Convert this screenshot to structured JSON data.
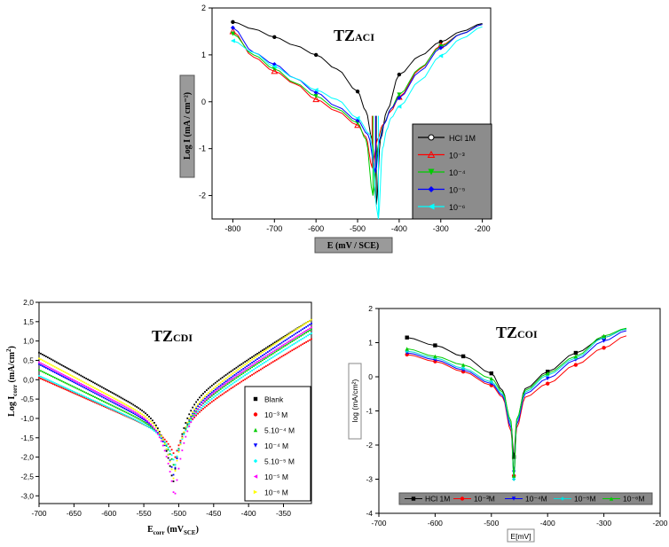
{
  "chart_data": [
    {
      "type": "line",
      "title": "TZ",
      "title_sub": "ACI",
      "xlabel": "E (mV / SCE)",
      "ylabel": "Log I (mA / cm⁻²)",
      "xlim": [
        -850,
        -180
      ],
      "ylim": [
        -2.5,
        2
      ],
      "xticks": [
        -800,
        -700,
        -600,
        -500,
        -400,
        -300,
        -200
      ],
      "yticks": [
        -2,
        -1,
        0,
        1,
        2
      ],
      "legend": [
        "HCl 1M",
        "10⁻³",
        "10⁻⁴",
        "10⁻⁵",
        "10⁻⁶"
      ],
      "series": [
        {
          "name": "HCl 1M",
          "color": "#000000",
          "ecorr": -455,
          "dip": -2.2,
          "x": [
            -800,
            -750,
            -700,
            -650,
            -600,
            -550,
            -500,
            -480,
            -465,
            -455,
            -445,
            -430,
            -400,
            -350,
            -300,
            -250,
            -200
          ],
          "y": [
            1.7,
            1.55,
            1.38,
            1.2,
            1.0,
            0.7,
            0.22,
            -0.2,
            -0.8,
            -2.2,
            -0.8,
            -0.2,
            0.58,
            0.98,
            1.28,
            1.5,
            1.67
          ]
        },
        {
          "name": "10⁻³",
          "color": "#ff0000",
          "ecorr": -465,
          "dip": -1.4,
          "x": [
            -800,
            -750,
            -700,
            -650,
            -600,
            -550,
            -500,
            -480,
            -465,
            -452,
            -440,
            -420,
            -400,
            -350,
            -300,
            -250,
            -200
          ],
          "y": [
            1.5,
            0.95,
            0.65,
            0.38,
            0.05,
            -0.2,
            -0.5,
            -0.75,
            -1.4,
            -0.8,
            -0.5,
            -0.2,
            0.1,
            0.7,
            1.2,
            1.45,
            1.65
          ]
        },
        {
          "name": "10⁻⁴",
          "color": "#00cc00",
          "ecorr": -463,
          "dip": -2.0,
          "x": [
            -800,
            -750,
            -700,
            -650,
            -600,
            -550,
            -500,
            -480,
            -463,
            -450,
            -438,
            -420,
            -400,
            -350,
            -300,
            -250,
            -200
          ],
          "y": [
            1.45,
            1.0,
            0.7,
            0.4,
            0.12,
            -0.15,
            -0.45,
            -0.8,
            -2.0,
            -0.9,
            -0.5,
            -0.15,
            0.15,
            0.72,
            1.18,
            1.45,
            1.65
          ]
        },
        {
          "name": "10⁻⁵",
          "color": "#0000ff",
          "ecorr": -457,
          "dip": -1.5,
          "x": [
            -800,
            -750,
            -700,
            -650,
            -600,
            -550,
            -500,
            -475,
            -457,
            -447,
            -435,
            -420,
            -400,
            -350,
            -300,
            -250,
            -200
          ],
          "y": [
            1.58,
            1.05,
            0.8,
            0.5,
            0.2,
            -0.1,
            -0.4,
            -0.7,
            -1.5,
            -0.8,
            -0.45,
            -0.15,
            0.08,
            0.65,
            1.15,
            1.45,
            1.65
          ]
        },
        {
          "name": "10⁻⁶",
          "color": "#00ffff",
          "ecorr": -450,
          "dip": -2.5,
          "x": [
            -800,
            -750,
            -700,
            -650,
            -600,
            -550,
            -500,
            -470,
            -450,
            -440,
            -430,
            -420,
            -400,
            -350,
            -300,
            -250,
            -200
          ],
          "y": [
            1.3,
            1.05,
            0.75,
            0.5,
            0.25,
            0.05,
            -0.35,
            -0.7,
            -2.5,
            -1.0,
            -0.6,
            -0.35,
            -0.1,
            0.45,
            0.98,
            1.35,
            1.6
          ]
        }
      ]
    },
    {
      "type": "scatter",
      "title": "TZ",
      "title_sub": "CDI",
      "xlabel": "E",
      "xlabel_sub": "corr",
      "xlabel_tail": " (mV",
      "xlabel_sub2": "SCE",
      "xlabel_end": ")",
      "ylabel": "Log I",
      "ylabel_sub": "corr",
      "ylabel_tail": " (mA/cm",
      "ylabel_sup": "2",
      "ylabel_end": ")",
      "xlim": [
        -700,
        -310
      ],
      "ylim": [
        -3.2,
        2.0
      ],
      "xticks": [
        -700,
        -650,
        -600,
        -550,
        -500,
        -450,
        -400,
        -350
      ],
      "yticks": [
        "2,0",
        "1,5",
        "1,0",
        "0,5",
        "0,0",
        "-0,5",
        "-1,0",
        "-1,5",
        "-2,0",
        "-2,5",
        "-3,0"
      ],
      "ytick_values": [
        2.0,
        1.5,
        1.0,
        0.5,
        0.0,
        -0.5,
        -1.0,
        -1.5,
        -2.0,
        -2.5,
        -3.0
      ],
      "legend": [
        {
          "marker": "■",
          "label": "Blank"
        },
        {
          "marker": "●",
          "label": "10⁻³ M"
        },
        {
          "marker": "▲",
          "label": "5.10⁻⁴ M"
        },
        {
          "marker": "▼",
          "label": "10⁻⁴ M"
        },
        {
          "marker": "◆",
          "label": "5.10⁻⁵ M"
        },
        {
          "marker": "◀",
          "label": "10⁻⁵ M"
        },
        {
          "marker": "▶",
          "label": "10⁻⁶ M"
        }
      ],
      "series": [
        {
          "name": "Blank",
          "color": "#000000",
          "a0": 0.7,
          "a1": -1.2,
          "ecorr": -508,
          "dip": -2.7,
          "b1": -1.0,
          "b0": 1.55
        },
        {
          "name": "10-3 M",
          "color": "#ff0000",
          "a0": 0.05,
          "a1": -1.5,
          "ecorr": -505,
          "dip": -2.0,
          "b1": -1.35,
          "b0": 1.05
        },
        {
          "name": "5.10-4 M",
          "color": "#00cc00",
          "a0": 0.25,
          "a1": -1.45,
          "ecorr": -506,
          "dip": -2.3,
          "b1": -1.25,
          "b0": 1.3
        },
        {
          "name": "10-4 M",
          "color": "#0000ff",
          "a0": 0.4,
          "a1": -1.4,
          "ecorr": -507,
          "dip": -2.5,
          "b1": -1.2,
          "b0": 1.45
        },
        {
          "name": "5.10-5 M",
          "color": "#00ffff",
          "a0": 0.1,
          "a1": -1.5,
          "ecorr": -505,
          "dip": -2.2,
          "b1": -1.3,
          "b0": 1.2
        },
        {
          "name": "10-5 M",
          "color": "#ff00ff",
          "a0": 0.45,
          "a1": -1.35,
          "ecorr": -506,
          "dip": -3.1,
          "b1": -1.2,
          "b0": 1.35
        },
        {
          "name": "10-6 M",
          "color": "#ffff00",
          "a0": 0.55,
          "a1": -1.3,
          "ecorr": -507,
          "dip": -2.6,
          "b1": -1.15,
          "b0": 1.55
        }
      ]
    },
    {
      "type": "line",
      "title": "TZ",
      "title_sub": "COI",
      "xlabel": "E[mV]",
      "ylabel": "log (mA/cm²)",
      "xlim": [
        -700,
        -200
      ],
      "ylim": [
        -4,
        2
      ],
      "xticks": [
        -700,
        -600,
        -500,
        -400,
        -300,
        -200
      ],
      "yticks": [
        2,
        1,
        0,
        -1,
        -2,
        -3,
        -4
      ],
      "legend": [
        {
          "marker": "■",
          "label": "HCl 1M"
        },
        {
          "marker": "●",
          "label": "10⁻³M"
        },
        {
          "marker": "▼",
          "label": "10⁻⁴M"
        },
        {
          "marker": "◆",
          "label": "10⁻⁵M"
        },
        {
          "marker": "▲",
          "label": "10⁻⁶M"
        }
      ],
      "series": [
        {
          "name": "HCl 1M",
          "color": "#000000",
          "marker": "square",
          "x": [
            -650,
            -600,
            -550,
            -500,
            -480,
            -465,
            -460,
            -455,
            -440,
            -400,
            -350,
            -300,
            -260
          ],
          "y": [
            1.15,
            0.92,
            0.6,
            0.1,
            -0.4,
            -1.4,
            -2.35,
            -1.3,
            -0.35,
            0.15,
            0.7,
            1.15,
            1.4
          ]
        },
        {
          "name": "10-3M",
          "color": "#ff0000",
          "marker": "circle",
          "x": [
            -650,
            -600,
            -550,
            -500,
            -480,
            -465,
            -460,
            -455,
            -440,
            -400,
            -350,
            -300,
            -260
          ],
          "y": [
            0.65,
            0.45,
            0.15,
            -0.25,
            -0.6,
            -1.6,
            -2.9,
            -1.5,
            -0.6,
            -0.2,
            0.35,
            0.85,
            1.2
          ]
        },
        {
          "name": "10-4M",
          "color": "#0000ff",
          "marker": "tri-down",
          "x": [
            -650,
            -600,
            -550,
            -500,
            -480,
            -465,
            -460,
            -455,
            -440,
            -400,
            -350,
            -300,
            -260
          ],
          "y": [
            0.7,
            0.5,
            0.2,
            -0.2,
            -0.55,
            -1.5,
            -2.8,
            -1.4,
            -0.5,
            -0.05,
            0.5,
            1.05,
            1.35
          ]
        },
        {
          "name": "10-5M",
          "color": "#00dddd",
          "marker": "diamond",
          "x": [
            -650,
            -600,
            -550,
            -500,
            -480,
            -465,
            -460,
            -455,
            -440,
            -400,
            -350,
            -300,
            -260
          ],
          "y": [
            0.75,
            0.55,
            0.25,
            -0.15,
            -0.5,
            -1.4,
            -3.0,
            -1.3,
            -0.45,
            0.05,
            0.55,
            1.15,
            1.4
          ]
        },
        {
          "name": "10-6M",
          "color": "#00cc00",
          "marker": "tri-up",
          "x": [
            -650,
            -600,
            -550,
            -500,
            -480,
            -465,
            -460,
            -455,
            -440,
            -400,
            -350,
            -300,
            -260
          ],
          "y": [
            0.82,
            0.6,
            0.35,
            -0.05,
            -0.45,
            -1.3,
            -2.9,
            -1.25,
            -0.4,
            0.1,
            0.6,
            1.2,
            1.42
          ]
        }
      ]
    }
  ]
}
